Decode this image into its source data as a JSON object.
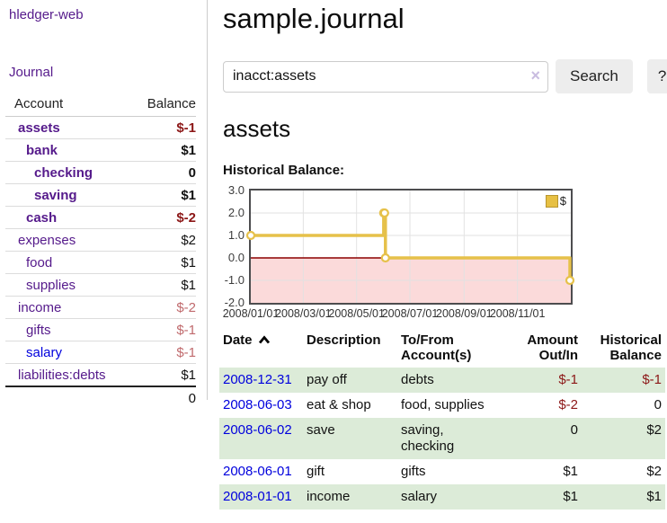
{
  "app_title": "hledger-web",
  "nav": {
    "journal": "Journal"
  },
  "sidebar": {
    "headers": {
      "account": "Account",
      "balance": "Balance"
    },
    "accounts": [
      {
        "name": "assets",
        "balance": "$-1",
        "depth": 1,
        "bold": true,
        "negative": true
      },
      {
        "name": "bank",
        "balance": "$1",
        "depth": 2,
        "bold": true,
        "negative": false
      },
      {
        "name": "checking",
        "balance": "0",
        "depth": 3,
        "bold": true,
        "negative": false
      },
      {
        "name": "saving",
        "balance": "$1",
        "depth": 3,
        "bold": true,
        "negative": false
      },
      {
        "name": "cash",
        "balance": "$-2",
        "depth": 2,
        "bold": true,
        "negative": true
      },
      {
        "name": "expenses",
        "balance": "$2",
        "depth": 1,
        "bold": false,
        "negative": false
      },
      {
        "name": "food",
        "balance": "$1",
        "depth": 2,
        "bold": false,
        "negative": false
      },
      {
        "name": "supplies",
        "balance": "$1",
        "depth": 2,
        "bold": false,
        "negative": false
      },
      {
        "name": "income",
        "balance": "$-2",
        "depth": 1,
        "bold": false,
        "negative": true
      },
      {
        "name": "gifts",
        "balance": "$-1",
        "depth": 2,
        "bold": false,
        "negative": true
      },
      {
        "name": "salary",
        "balance": "$-1",
        "depth": 2,
        "bold": false,
        "negative": true,
        "link_color": "#0000dd"
      },
      {
        "name": "liabilities:debts",
        "balance": "$1",
        "depth": 1,
        "bold": false,
        "negative": false
      }
    ],
    "total": "0"
  },
  "main": {
    "title": "sample.journal",
    "search": {
      "value": "inacct:assets",
      "clear_icon": "×",
      "button": "Search",
      "help": "?"
    },
    "account_title": "assets",
    "chart_title": "Historical Balance:"
  },
  "chart_data": {
    "type": "line",
    "step": true,
    "title": "Historical Balance:",
    "legend": [
      {
        "label": "$",
        "color": "#e7c043"
      }
    ],
    "ylim": [
      -2,
      3
    ],
    "yticks": [
      "3.0",
      "2.0",
      "1.0",
      "0.0",
      "-1.0",
      "-2.0"
    ],
    "xlim": [
      "2008-01-01",
      "2008-12-31"
    ],
    "xticks": [
      {
        "label": "2008/01/01",
        "date": "2008-01-01"
      },
      {
        "label": "2008/03/01",
        "date": "2008-03-01"
      },
      {
        "label": "2008/05/01",
        "date": "2008-05-01"
      },
      {
        "label": "2008/07/01",
        "date": "2008-07-01"
      },
      {
        "label": "2008/09/01",
        "date": "2008-09-01"
      },
      {
        "label": "2008/11/01",
        "date": "2008-11-01"
      }
    ],
    "series": [
      {
        "name": "$",
        "points": [
          {
            "date": "2008-01-01",
            "value": 1
          },
          {
            "date": "2008-06-01",
            "value": 2
          },
          {
            "date": "2008-06-02",
            "value": 2
          },
          {
            "date": "2008-06-03",
            "value": 0
          },
          {
            "date": "2008-12-31",
            "value": -1
          }
        ]
      }
    ],
    "grid": true,
    "legend_position": "top-right",
    "line_color": "#e6c14a",
    "marker_fill": "#ffffff",
    "zero_line_color": "#8b0000",
    "negative_region_fill": "#fbdada",
    "gridline_color": "#e2e2e2"
  },
  "register": {
    "headers": {
      "date": "Date",
      "sort_icon": "chevron-up",
      "description": "Description",
      "accounts": "To/From\nAccount(s)",
      "amount": "Amount\nOut/In",
      "balance": "Historical\nBalance"
    },
    "rows": [
      {
        "date": "2008-12-31",
        "description": "pay off",
        "accounts": "debts",
        "amount": "$-1",
        "amount_negative": true,
        "balance": "$-1",
        "balance_negative": true
      },
      {
        "date": "2008-06-03",
        "description": "eat & shop",
        "accounts": "food, supplies",
        "amount": "$-2",
        "amount_negative": true,
        "balance": "0",
        "balance_negative": false
      },
      {
        "date": "2008-06-02",
        "description": "save",
        "accounts": "saving,\nchecking",
        "amount": "0",
        "amount_negative": false,
        "balance": "$2",
        "balance_negative": false
      },
      {
        "date": "2008-06-01",
        "description": "gift",
        "accounts": "gifts",
        "amount": "$1",
        "amount_negative": false,
        "balance": "$2",
        "balance_negative": false
      },
      {
        "date": "2008-01-01",
        "description": "income",
        "accounts": "salary",
        "amount": "$1",
        "amount_negative": false,
        "balance": "$1",
        "balance_negative": false
      }
    ]
  },
  "colors": {
    "link_purple": "#551a8b",
    "link_blue": "#0000dd",
    "negative_bold": "#8c1717",
    "negative_light": "#c06a6d",
    "row_green": "#dcebd8",
    "button_grey": "#ededed",
    "clear_icon_lavender": "#c9bce0"
  }
}
